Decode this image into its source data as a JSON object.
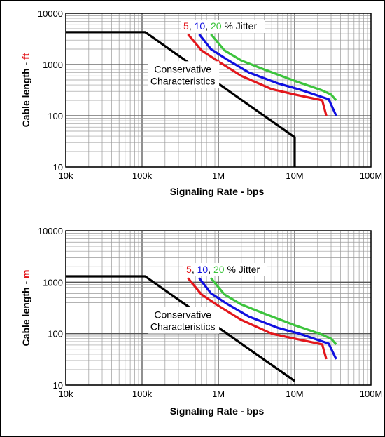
{
  "accent_colors": {
    "red": "#e3161b",
    "blue": "#1010e0",
    "green": "#3dc43d",
    "black": "#000000",
    "grid": "#9a9a9a"
  },
  "chart_data": [
    {
      "type": "line",
      "xscale": "log",
      "yscale": "log",
      "xlim": [
        10000,
        100000000
      ],
      "ylim": [
        10,
        10000
      ],
      "xlabel": "Signaling Rate - bps",
      "ylabel_main": "Cable length - ",
      "ylabel_unit": "ft",
      "xticks": [
        "10k",
        "100k",
        "1M",
        "10M",
        "100M"
      ],
      "yticks": [
        "10",
        "100",
        "1000",
        "10000"
      ],
      "grid": true,
      "annotation": {
        "line1": "Conservative",
        "line2": "Characteristics"
      },
      "jitter_legend": {
        "v5": "5",
        "c1": ",",
        "v10": "10",
        "c2": ",",
        "v20": "20",
        "suffix": "% Jitter"
      },
      "series": [
        {
          "key": "conservative",
          "color": "#000000",
          "x": [
            10000,
            100000,
            110000,
            10000000,
            10000000
          ],
          "y": [
            4300,
            4300,
            4300,
            38,
            10
          ]
        },
        {
          "key": "jitter5",
          "color": "#e3161b",
          "x": [
            400000,
            600000,
            1000000,
            2000000,
            5000000,
            10000000,
            23000000,
            26000000
          ],
          "y": [
            3900,
            1900,
            1150,
            600,
            330,
            260,
            200,
            100
          ]
        },
        {
          "key": "jitter10",
          "color": "#1010e0",
          "x": [
            560000,
            800000,
            1300000,
            2500000,
            6000000,
            12000000,
            28000000,
            35000000
          ],
          "y": [
            3900,
            2000,
            1250,
            700,
            430,
            320,
            210,
            100
          ]
        },
        {
          "key": "jitter20",
          "color": "#3dc43d",
          "x": [
            800000,
            1200000,
            2000000,
            4000000,
            10000000,
            22000000,
            30000000,
            35000000
          ],
          "y": [
            3900,
            1900,
            1200,
            800,
            480,
            320,
            260,
            200
          ]
        }
      ]
    },
    {
      "type": "line",
      "xscale": "log",
      "yscale": "log",
      "xlim": [
        10000,
        100000000
      ],
      "ylim": [
        10,
        10000
      ],
      "xlabel": "Signaling Rate - bps",
      "ylabel_main": "Cable length - ",
      "ylabel_unit": "m",
      "xticks": [
        "10k",
        "100k",
        "1M",
        "10M",
        "100M"
      ],
      "yticks": [
        "10",
        "100",
        "1000",
        "10000"
      ],
      "grid": true,
      "annotation": {
        "line1": "Conservative",
        "line2": "Characteristics"
      },
      "jitter_legend": {
        "v5": "5",
        "c1": ",",
        "v10": "10",
        "c2": ",",
        "v20": "20",
        "suffix": "% Jitter"
      },
      "series": [
        {
          "key": "conservative",
          "color": "#000000",
          "x": [
            10000,
            100000,
            110000,
            10000000
          ],
          "y": [
            1300,
            1300,
            1300,
            12
          ]
        },
        {
          "key": "jitter5",
          "color": "#e3161b",
          "x": [
            400000,
            600000,
            1000000,
            2000000,
            5000000,
            10000000,
            23000000,
            26000000
          ],
          "y": [
            1200,
            580,
            350,
            185,
            100,
            80,
            62,
            32
          ]
        },
        {
          "key": "jitter10",
          "color": "#1010e0",
          "x": [
            560000,
            800000,
            1300000,
            2500000,
            6000000,
            12000000,
            28000000,
            35000000
          ],
          "y": [
            1200,
            610,
            380,
            215,
            130,
            98,
            64,
            32
          ]
        },
        {
          "key": "jitter20",
          "color": "#3dc43d",
          "x": [
            800000,
            1200000,
            2000000,
            4000000,
            10000000,
            22000000,
            30000000,
            35000000
          ],
          "y": [
            1200,
            580,
            370,
            245,
            146,
            98,
            80,
            62
          ]
        }
      ]
    }
  ]
}
